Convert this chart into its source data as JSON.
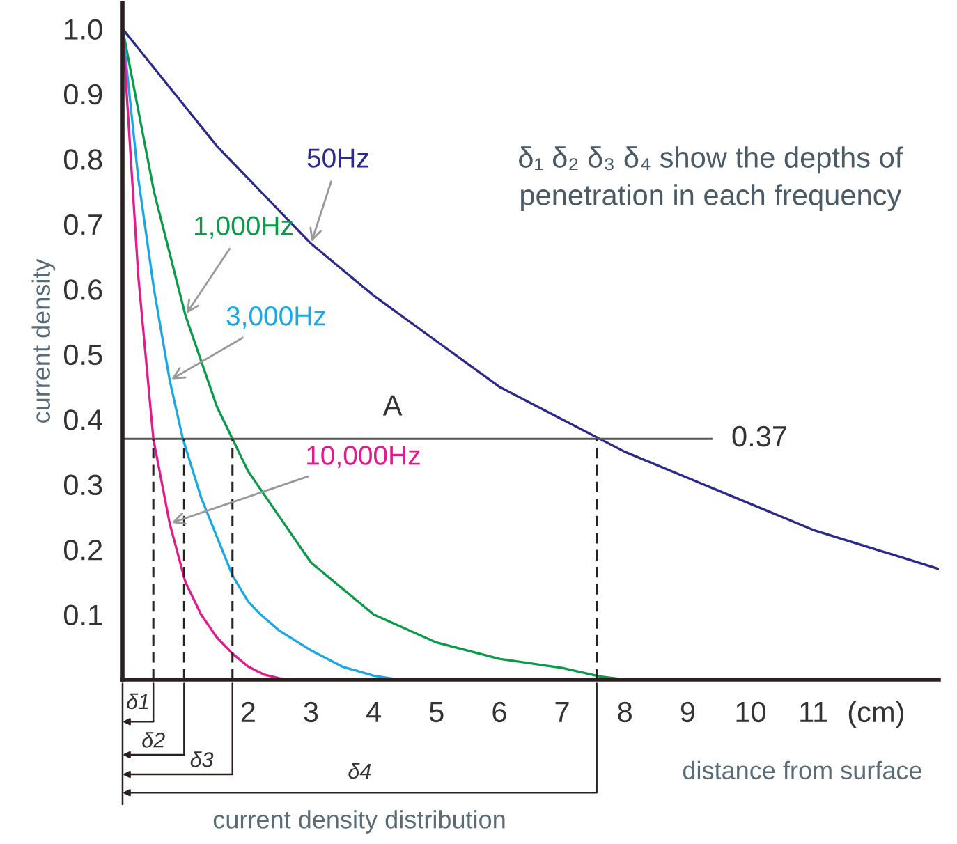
{
  "chart_data": {
    "type": "line",
    "xlabel": "distance from surface",
    "ylabel": "current density",
    "xlim": [
      0,
      13
    ],
    "ylim": [
      0,
      1.04
    ],
    "xticks": [
      2,
      3,
      4,
      5,
      6,
      7,
      8,
      9,
      10,
      11,
      {
        "value": 12,
        "label": "(cm)"
      }
    ],
    "yticks": [
      0.1,
      0.2,
      0.3,
      0.4,
      0.5,
      0.6,
      0.7,
      0.8,
      0.9,
      {
        "value": 1.0,
        "label": "1.0"
      }
    ],
    "grid": false,
    "legend": false,
    "marker": "none",
    "line_style": "solid",
    "series": [
      {
        "name": "50Hz",
        "color": "#2b2a8c",
        "x": [
          0,
          0.5,
          1,
          1.5,
          2,
          2.5,
          3,
          3.5,
          4,
          5,
          6,
          7,
          8,
          9,
          10,
          11,
          12,
          13
        ],
        "values": [
          1.0,
          0.94,
          0.88,
          0.82,
          0.77,
          0.72,
          0.67,
          0.63,
          0.59,
          0.52,
          0.45,
          0.4,
          0.35,
          0.31,
          0.27,
          0.23,
          0.2,
          0.17
        ]
      },
      {
        "name": "1,000Hz",
        "color": "#0a9a4a",
        "x": [
          0,
          0.5,
          1,
          1.5,
          1.75,
          2,
          3,
          4,
          5,
          6,
          7,
          7.6,
          8
        ],
        "values": [
          1.0,
          0.75,
          0.56,
          0.42,
          0.37,
          0.32,
          0.18,
          0.1,
          0.057,
          0.032,
          0.018,
          0.005,
          0
        ]
      },
      {
        "name": "3,000Hz",
        "color": "#1aa7e6",
        "x": [
          0,
          0.25,
          0.5,
          0.75,
          0.96,
          1.25,
          1.5,
          1.75,
          2.0,
          2.2,
          2.5,
          3,
          3.5,
          4,
          4.4
        ],
        "values": [
          1.0,
          0.77,
          0.6,
          0.46,
          0.37,
          0.28,
          0.22,
          0.16,
          0.12,
          0.1,
          0.075,
          0.045,
          0.02,
          0.006,
          0
        ]
      },
      {
        "name": "10,000Hz",
        "color": "#e6198a",
        "x": [
          0,
          0.25,
          0.49,
          0.75,
          1,
          1.25,
          1.5,
          1.75,
          2,
          2.25,
          2.5,
          2.7,
          3
        ],
        "values": [
          1.0,
          0.62,
          0.37,
          0.24,
          0.15,
          0.1,
          0.065,
          0.04,
          0.02,
          0.008,
          0.002,
          0,
          0
        ]
      }
    ],
    "ref_lines": [
      {
        "axis": "y",
        "value": 0.37,
        "label": "0.37",
        "color": "#555555",
        "line_style": "solid"
      },
      {
        "axis": "x",
        "value": 0.49,
        "color": "#222222",
        "line_style": "dashed"
      },
      {
        "axis": "x",
        "value": 0.98,
        "color": "#222222",
        "line_style": "dashed"
      },
      {
        "axis": "x",
        "value": 1.75,
        "color": "#222222",
        "line_style": "dashed"
      },
      {
        "axis": "x",
        "value": 7.55,
        "color": "#222222",
        "line_style": "dashed"
      }
    ],
    "annotations": [
      {
        "text": "A",
        "x": 4.3,
        "y": 0.37
      },
      "δ₁ δ₂ δ₃ δ₄ show the depths of\npenetration in each frequency",
      "current density distribution",
      "δ1",
      "δ2",
      "δ3",
      "δ4"
    ]
  }
}
